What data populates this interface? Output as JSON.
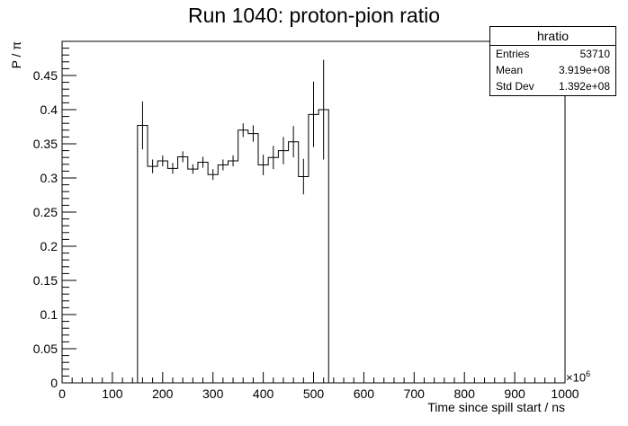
{
  "chart_data": {
    "type": "bar",
    "title": "Run 1040: proton-pion ratio",
    "xlabel": "Time since spill start / ns",
    "ylabel": "P / π",
    "x_multiplier": "×10",
    "x_multiplier_exp": "6",
    "xlim": [
      0,
      1000
    ],
    "ylim": [
      0,
      0.5
    ],
    "x_ticks": [
      0,
      100,
      200,
      300,
      400,
      500,
      600,
      700,
      800,
      900,
      1000
    ],
    "x_tick_labels": [
      "0",
      "100",
      "200",
      "300",
      "400",
      "500",
      "600",
      "700",
      "800",
      "900",
      "1000"
    ],
    "y_ticks": [
      0,
      0.05,
      0.1,
      0.15,
      0.2,
      0.25,
      0.3,
      0.35,
      0.4,
      0.45
    ],
    "y_tick_labels": [
      "0",
      "0.05",
      "0.1",
      "0.15",
      "0.2",
      "0.25",
      "0.3",
      "0.35",
      "0.4",
      "0.45"
    ],
    "grid": false,
    "bin_width": 20,
    "bins": [
      {
        "x": 150,
        "y": 0.377,
        "err": 0.035
      },
      {
        "x": 170,
        "y": 0.317,
        "err": 0.01
      },
      {
        "x": 190,
        "y": 0.325,
        "err": 0.008
      },
      {
        "x": 210,
        "y": 0.314,
        "err": 0.008
      },
      {
        "x": 230,
        "y": 0.331,
        "err": 0.008
      },
      {
        "x": 250,
        "y": 0.313,
        "err": 0.007
      },
      {
        "x": 270,
        "y": 0.323,
        "err": 0.008
      },
      {
        "x": 290,
        "y": 0.305,
        "err": 0.008
      },
      {
        "x": 310,
        "y": 0.319,
        "err": 0.008
      },
      {
        "x": 330,
        "y": 0.325,
        "err": 0.008
      },
      {
        "x": 350,
        "y": 0.37,
        "err": 0.01
      },
      {
        "x": 370,
        "y": 0.365,
        "err": 0.012
      },
      {
        "x": 390,
        "y": 0.319,
        "err": 0.015
      },
      {
        "x": 410,
        "y": 0.33,
        "err": 0.017
      },
      {
        "x": 430,
        "y": 0.34,
        "err": 0.02
      },
      {
        "x": 450,
        "y": 0.353,
        "err": 0.023
      },
      {
        "x": 470,
        "y": 0.302,
        "err": 0.026
      },
      {
        "x": 490,
        "y": 0.393,
        "err": 0.048
      },
      {
        "x": 510,
        "y": 0.4,
        "err": 0.073
      }
    ],
    "stats_box": {
      "name": "hratio",
      "rows": [
        {
          "label": "Entries",
          "value": "53710"
        },
        {
          "label": "Mean",
          "value": "3.919e+08"
        },
        {
          "label": "Std Dev",
          "value": "1.392e+08"
        }
      ]
    }
  }
}
